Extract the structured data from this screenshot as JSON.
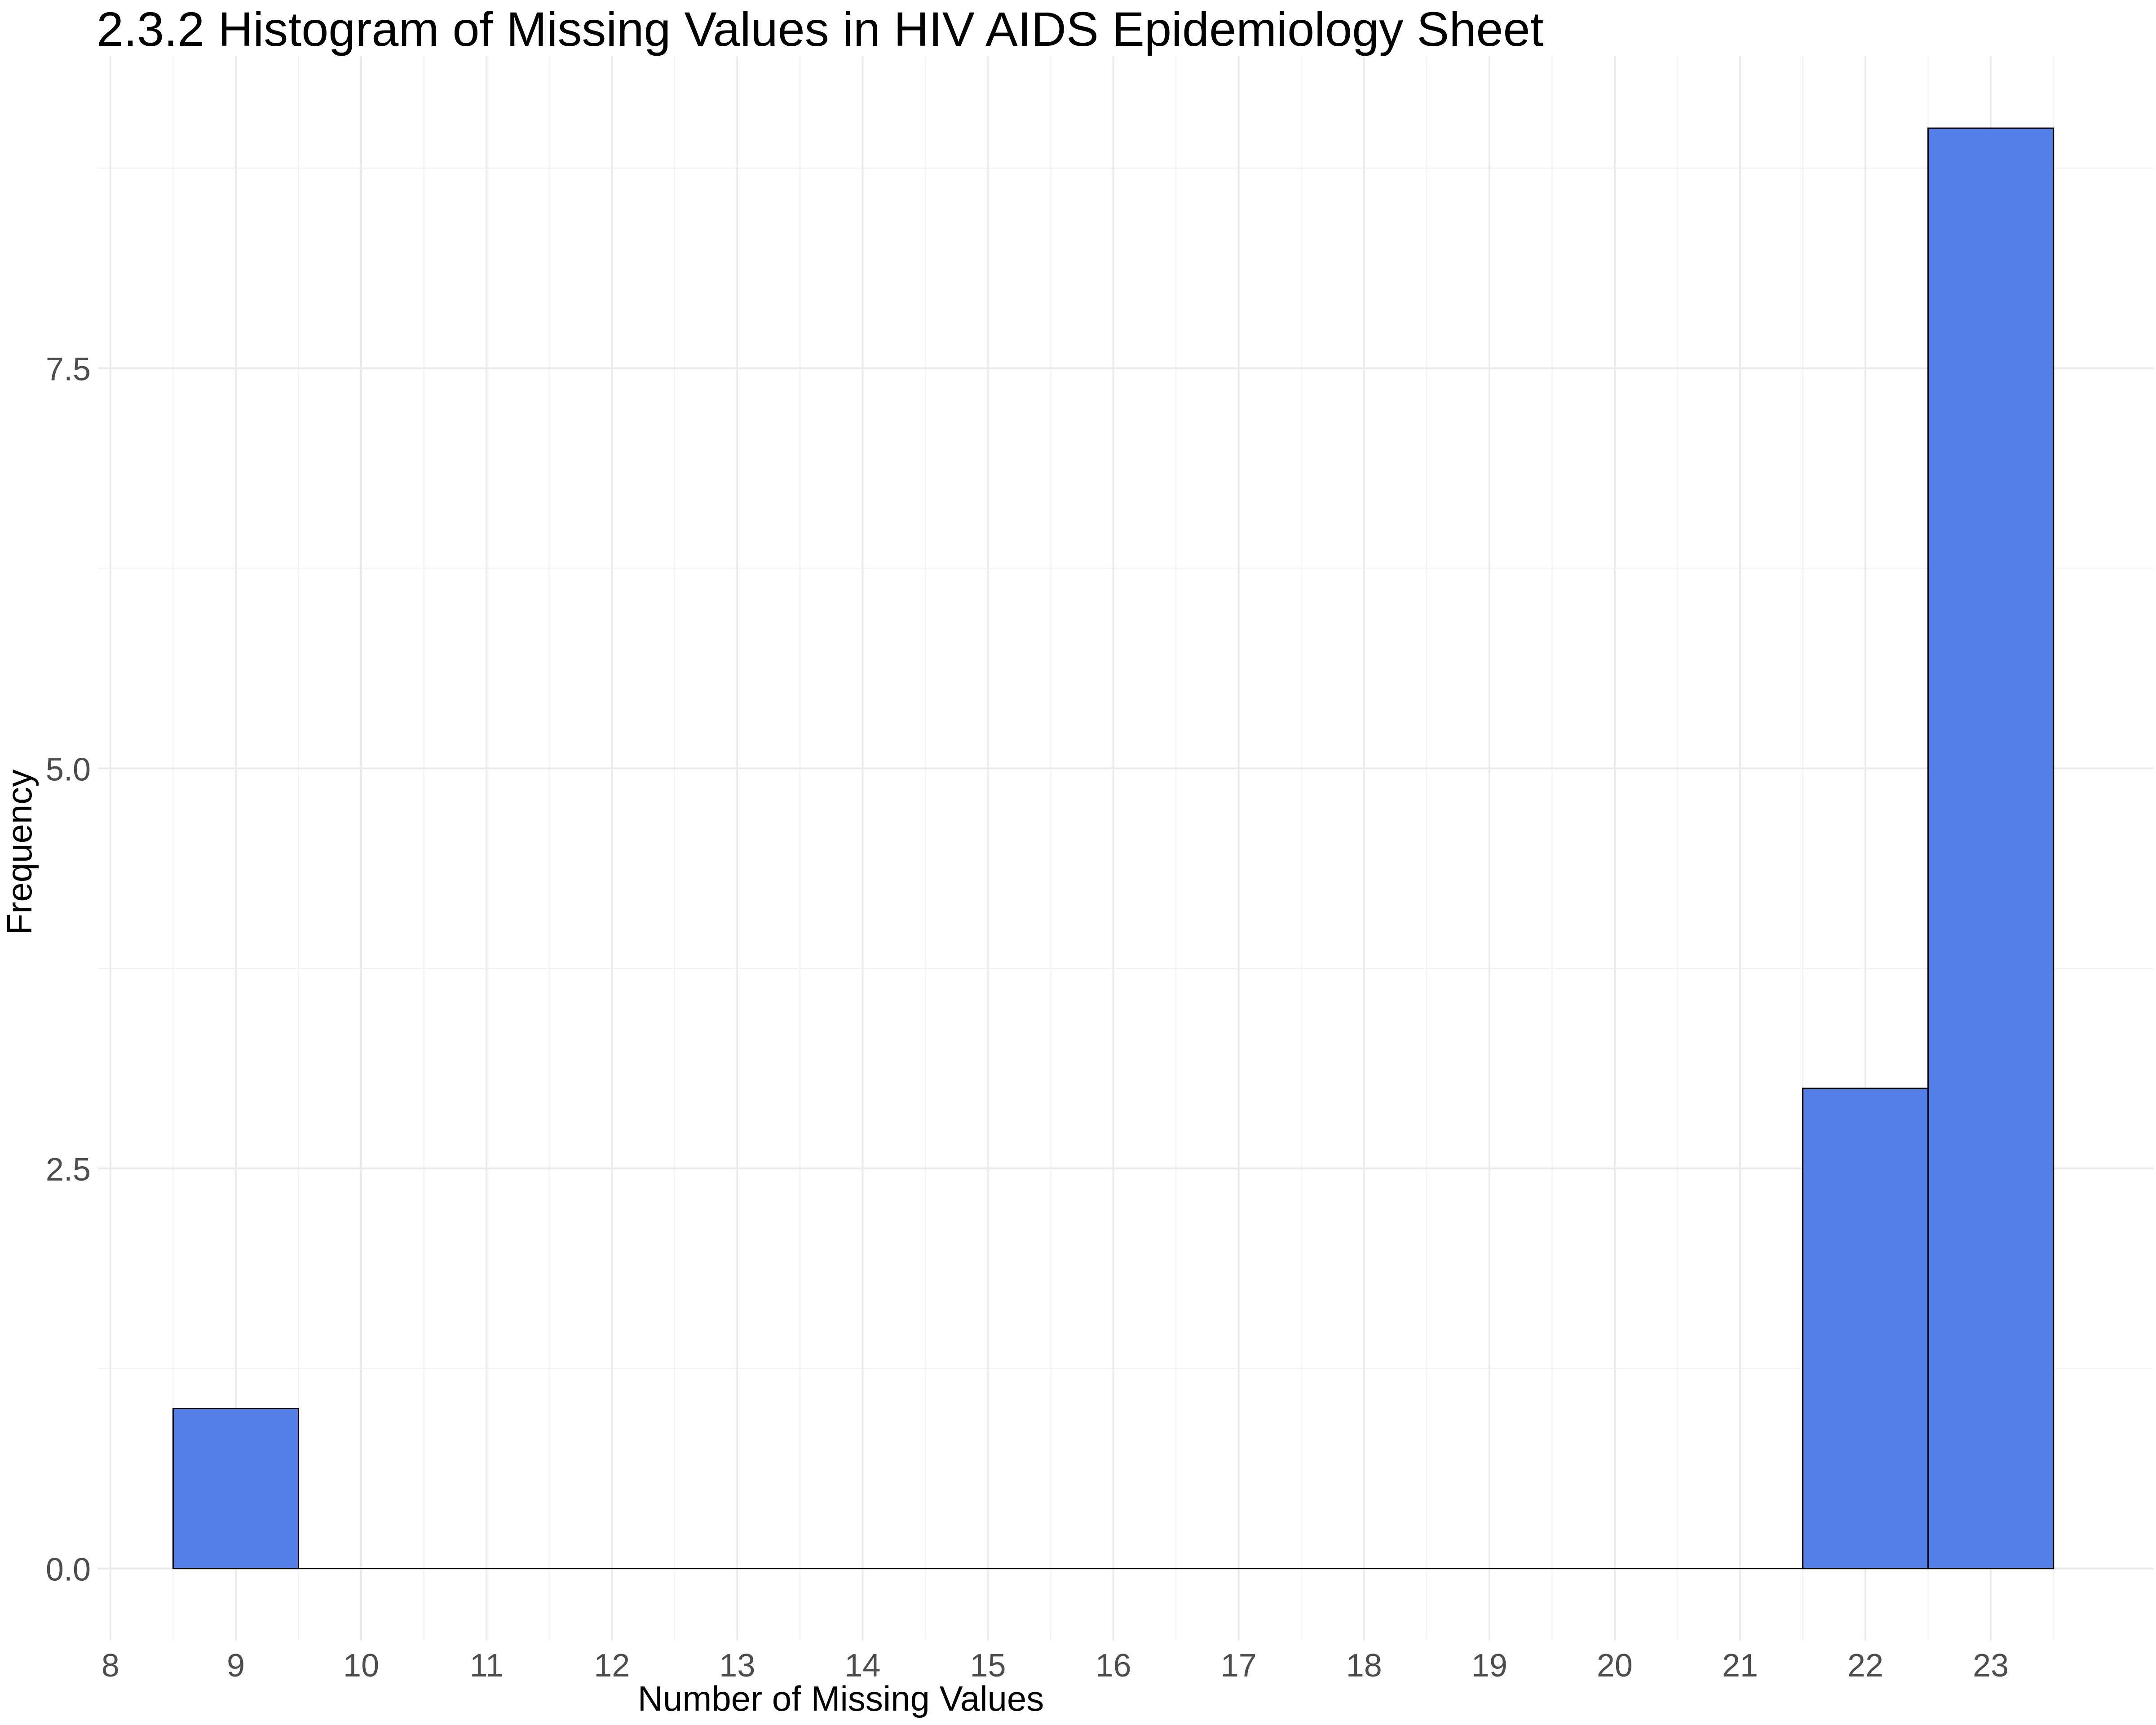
{
  "chart_data": {
    "type": "bar",
    "title": "2.3.2 Histogram of Missing Values in HIV AIDS Epidemiology Sheet",
    "xlabel": "Number of Missing Values",
    "ylabel": "Frequency",
    "bin_width": 1,
    "bins": [
      {
        "x": 9,
        "count": 1
      },
      {
        "x": 10,
        "count": 0
      },
      {
        "x": 11,
        "count": 0
      },
      {
        "x": 12,
        "count": 0
      },
      {
        "x": 13,
        "count": 0
      },
      {
        "x": 14,
        "count": 0
      },
      {
        "x": 15,
        "count": 0
      },
      {
        "x": 16,
        "count": 0
      },
      {
        "x": 17,
        "count": 0
      },
      {
        "x": 18,
        "count": 0
      },
      {
        "x": 19,
        "count": 0
      },
      {
        "x": 20,
        "count": 0
      },
      {
        "x": 21,
        "count": 0
      },
      {
        "x": 22,
        "count": 3
      },
      {
        "x": 23,
        "count": 9
      }
    ],
    "xlim": [
      7.9,
      24.3
    ],
    "ylim": [
      -0.45,
      9.45
    ],
    "x_ticks": [
      "8",
      "9",
      "10",
      "11",
      "12",
      "13",
      "14",
      "15",
      "16",
      "17",
      "18",
      "19",
      "20",
      "21",
      "22",
      "23"
    ],
    "y_ticks": [
      "0.0",
      "2.5",
      "5.0",
      "7.5"
    ],
    "grid": true,
    "legend": "none",
    "colors": {
      "bar_fill": "#5580E8",
      "bar_outline": "#000000",
      "grid_major": "#EBEBEB",
      "grid_minor": "#F4F4F4",
      "tick_text": "#4D4D4D",
      "axis_title": "#000000"
    }
  }
}
